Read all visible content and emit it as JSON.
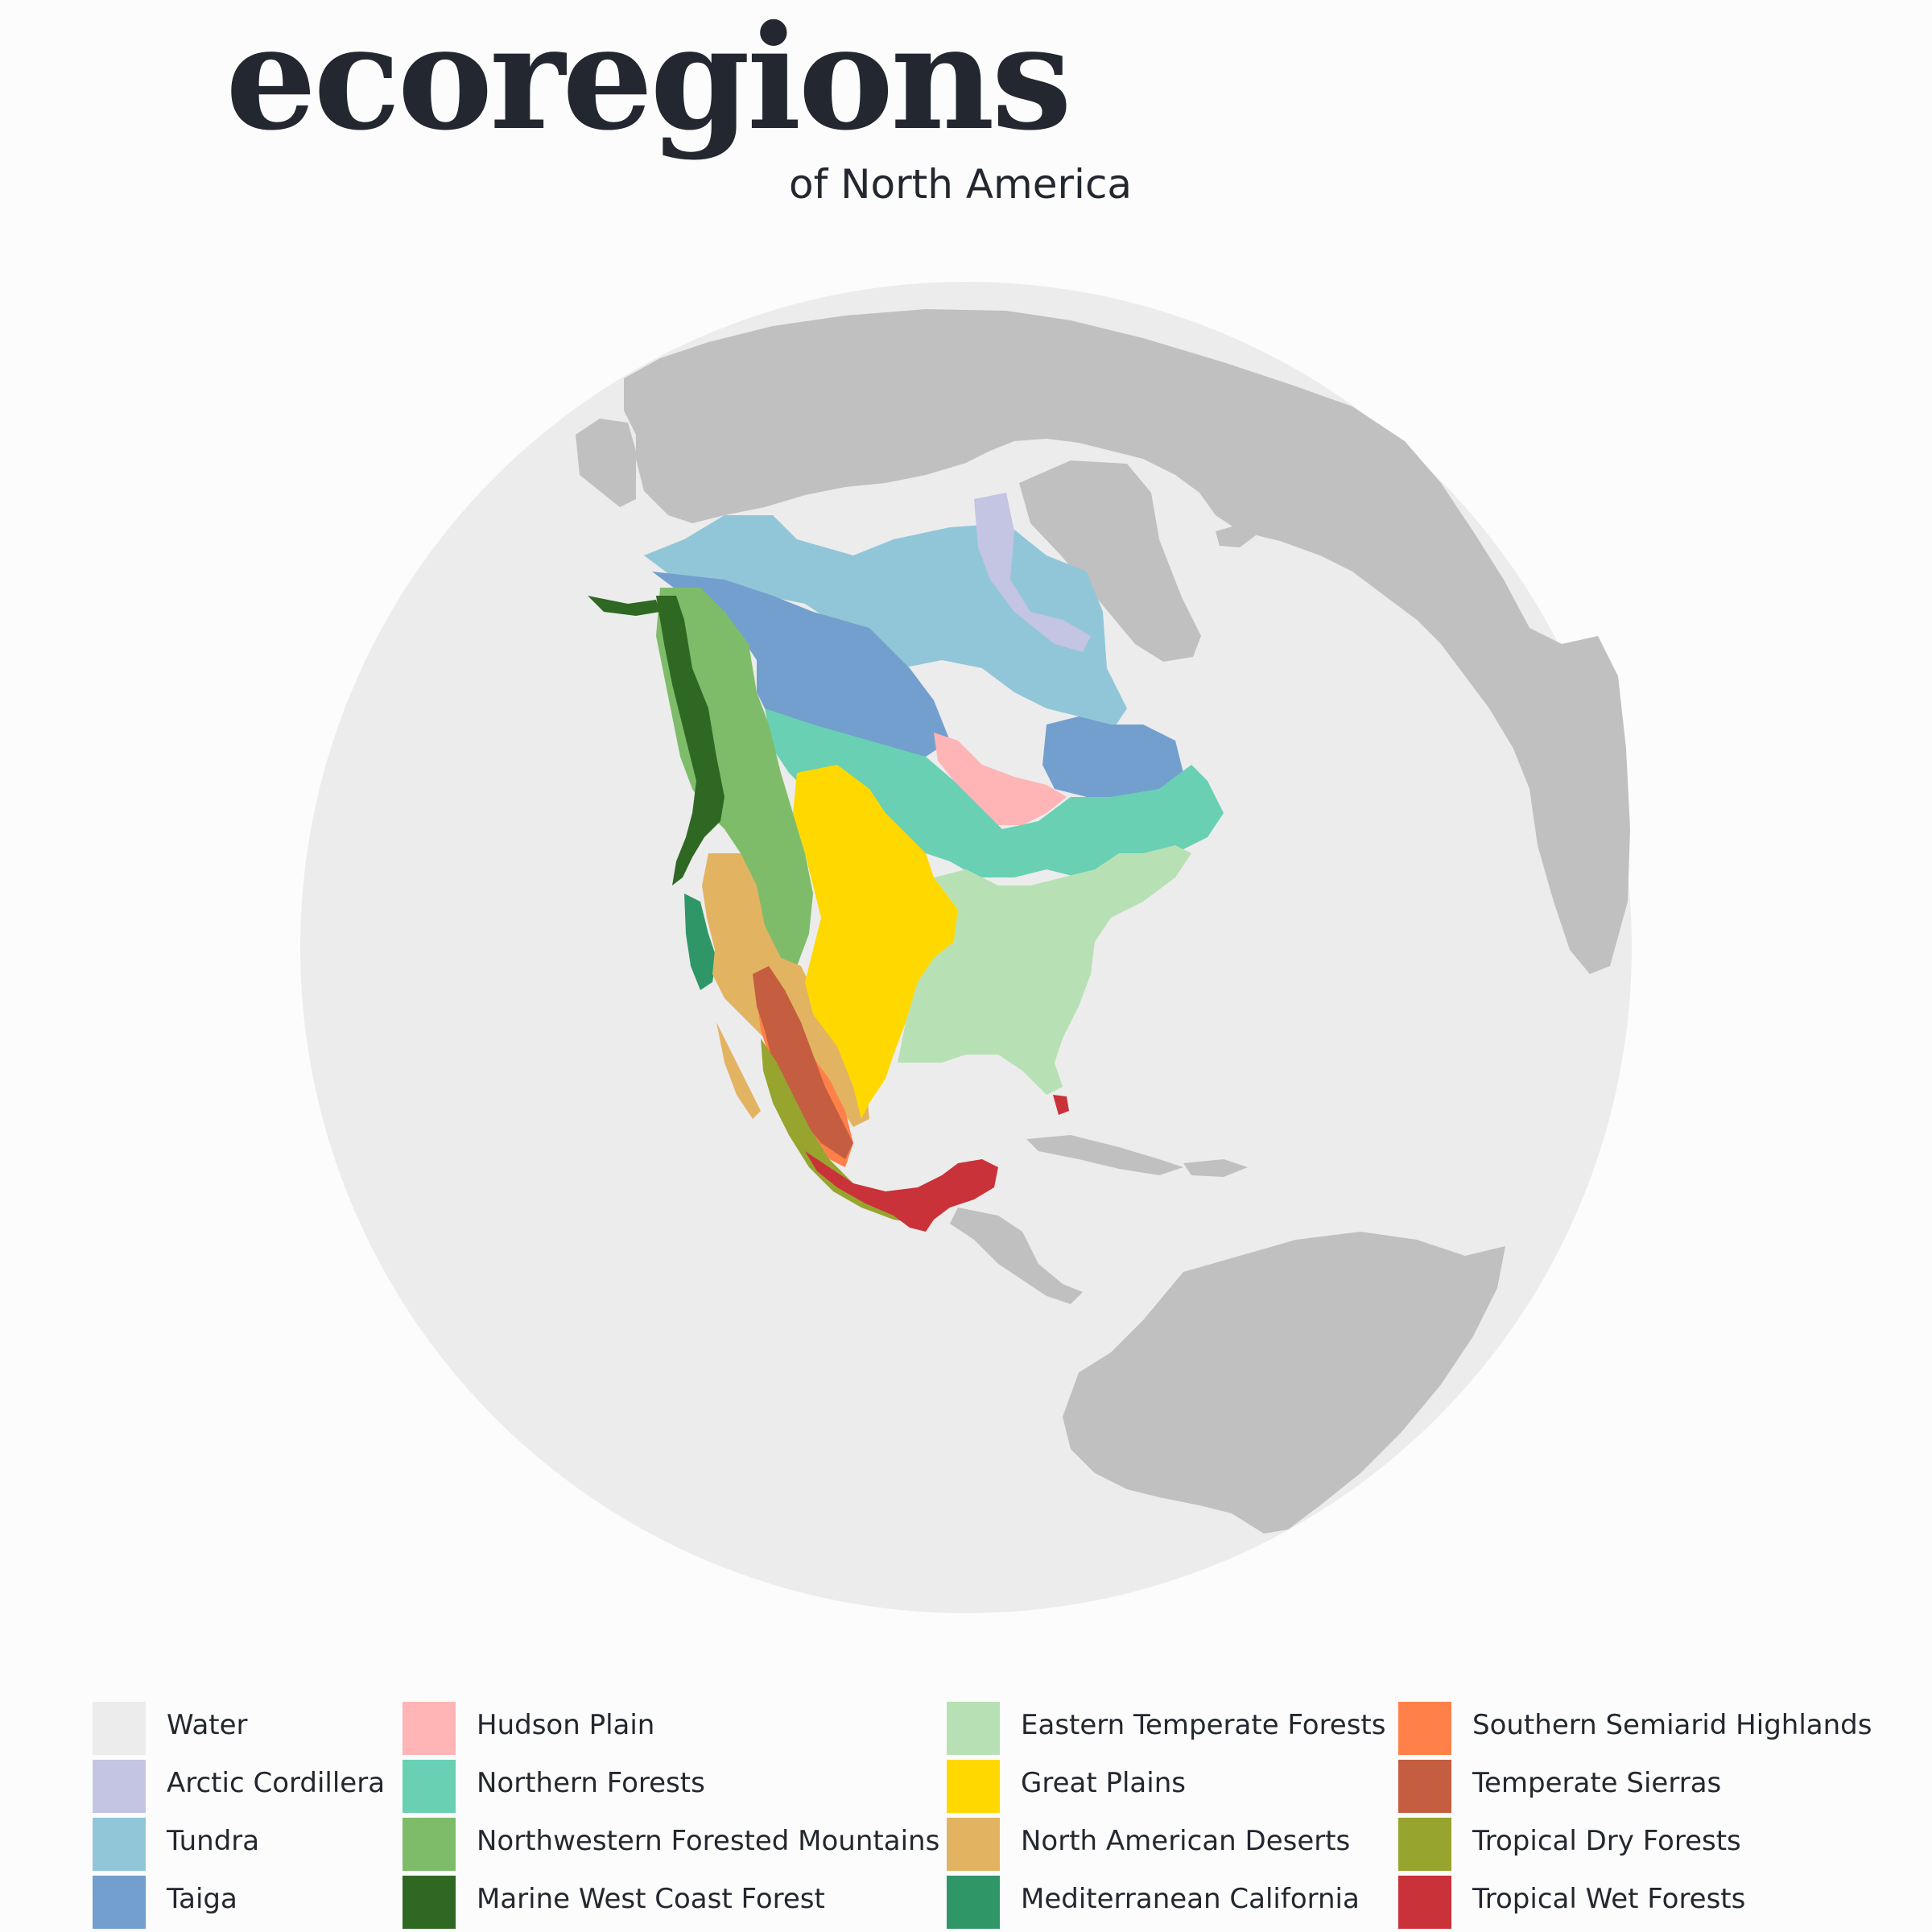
{
  "header": {
    "title": "ecoregions",
    "subtitle": "of North America"
  },
  "colors": {
    "background": "#fcfcfc",
    "ocean": "#ececec",
    "other_land": "#c0c0c0",
    "text": "#23272f"
  },
  "legend": {
    "columns": [
      {
        "items": [
          {
            "label": "Water",
            "color": "#ececec"
          },
          {
            "label": "Arctic Cordillera",
            "color": "#c3c5e2"
          },
          {
            "label": "Tundra",
            "color": "#91c6d9"
          },
          {
            "label": "Taiga",
            "color": "#739fce"
          }
        ]
      },
      {
        "items": [
          {
            "label": "Hudson Plain",
            "color": "#ffb4b6"
          },
          {
            "label": "Northern Forests",
            "color": "#69d0b4"
          },
          {
            "label": "Northwestern Forested Mountains",
            "color": "#7fbc6a"
          },
          {
            "label": "Marine West Coast Forest",
            "color": "#2f6822"
          }
        ]
      },
      {
        "items": [
          {
            "label": "Eastern Temperate Forests",
            "color": "#b7e1b4"
          },
          {
            "label": "Great Plains",
            "color": "#ffd800"
          },
          {
            "label": "North American Deserts",
            "color": "#e2b461"
          },
          {
            "label": "Mediterranean California",
            "color": "#2f9668"
          }
        ]
      },
      {
        "items": [
          {
            "label": "Southern Semiarid Highlands",
            "color": "#ff8149"
          },
          {
            "label": "Temperate Sierras",
            "color": "#c55e40"
          },
          {
            "label": "Tropical Dry Forests",
            "color": "#97a42e"
          },
          {
            "label": "Tropical Wet Forests",
            "color": "#c93238"
          }
        ]
      }
    ]
  }
}
